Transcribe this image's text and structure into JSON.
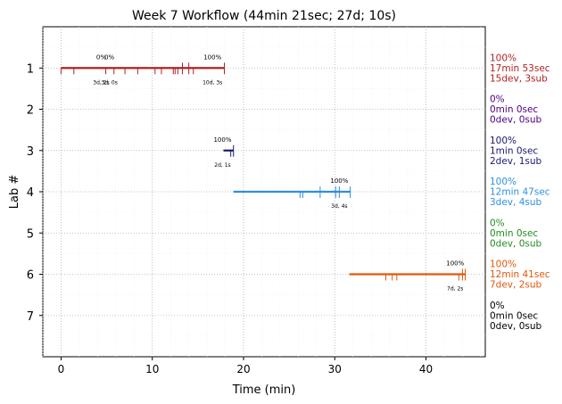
{
  "chart_data": {
    "type": "timeline",
    "title": "Week 7 Workflow (44min 21sec; 27d; 10s)",
    "xlabel": "Time (min)",
    "ylabel": "Lab #",
    "xlim": [
      -2,
      46.5
    ],
    "ylim": [
      8,
      0
    ],
    "xticks": [
      "0",
      "10",
      "20",
      "30",
      "40"
    ],
    "yticks": [
      "1",
      "2",
      "3",
      "4",
      "5",
      "6",
      "7"
    ],
    "grid": true,
    "labs": [
      {
        "lab": 1,
        "color": "#b22222",
        "start": 0,
        "end": 17.9,
        "ticks": [
          0,
          1.4,
          4.9,
          5.8,
          7.0,
          8.4,
          10.3,
          11.0,
          12.3,
          12.5,
          12.8,
          13.3,
          14.0,
          14.5,
          17.9
        ],
        "upticks": [
          13.3,
          14.0,
          17.9
        ],
        "annotations": [
          {
            "x": 4.4,
            "pct": "0%",
            "sub": "3d, 2s"
          },
          {
            "x": 5.3,
            "pct": "0%",
            "sub": "3d, 0s"
          },
          {
            "x": 16.6,
            "pct": "100%",
            "sub": "10d, 3s"
          }
        ],
        "summary": [
          "100%",
          "17min 53sec",
          "15dev, 3sub"
        ]
      },
      {
        "lab": 2,
        "color": "#4b0082",
        "start": null,
        "end": null,
        "ticks": [],
        "upticks": [],
        "annotations": [],
        "summary": [
          "0%",
          "0min 0sec",
          "0dev, 0sub"
        ]
      },
      {
        "lab": 3,
        "color": "#191970",
        "start": 17.8,
        "end": 18.9,
        "ticks": [
          18.6,
          18.9
        ],
        "upticks": [
          18.9
        ],
        "annotations": [
          {
            "x": 17.7,
            "pct": "100%",
            "sub": "2d, 1s"
          }
        ],
        "summary": [
          "100%",
          "1min 0sec",
          "2dev, 1sub"
        ]
      },
      {
        "lab": 4,
        "color": "#2f8fe0",
        "start": 18.9,
        "end": 31.7,
        "ticks": [
          26.2,
          26.5,
          28.4,
          30.1,
          30.5,
          31.7
        ],
        "upticks": [
          28.4,
          30.1,
          30.5,
          31.7
        ],
        "annotations": [
          {
            "x": 30.5,
            "pct": "100%",
            "sub": "3d, 4s"
          }
        ],
        "summary": [
          "100%",
          "12min 47sec",
          "3dev, 4sub"
        ]
      },
      {
        "lab": 5,
        "color": "#228b22",
        "start": null,
        "end": null,
        "ticks": [],
        "upticks": [],
        "annotations": [],
        "summary": [
          "0%",
          "0min 0sec",
          "0dev, 0sub"
        ]
      },
      {
        "lab": 6,
        "color": "#e0580a",
        "start": 31.6,
        "end": 44.3,
        "ticks": [
          35.6,
          36.3,
          36.8,
          43.6,
          44.0,
          44.3
        ],
        "upticks": [
          44.0,
          44.3
        ],
        "annotations": [
          {
            "x": 43.2,
            "pct": "100%",
            "sub": "7d, 2s"
          }
        ],
        "summary": [
          "100%",
          "12min 41sec",
          "7dev, 2sub"
        ]
      },
      {
        "lab": 7,
        "color": "#000000",
        "start": null,
        "end": null,
        "ticks": [],
        "upticks": [],
        "annotations": [],
        "summary": [
          "0%",
          "0min 0sec",
          "0dev, 0sub"
        ]
      }
    ]
  }
}
